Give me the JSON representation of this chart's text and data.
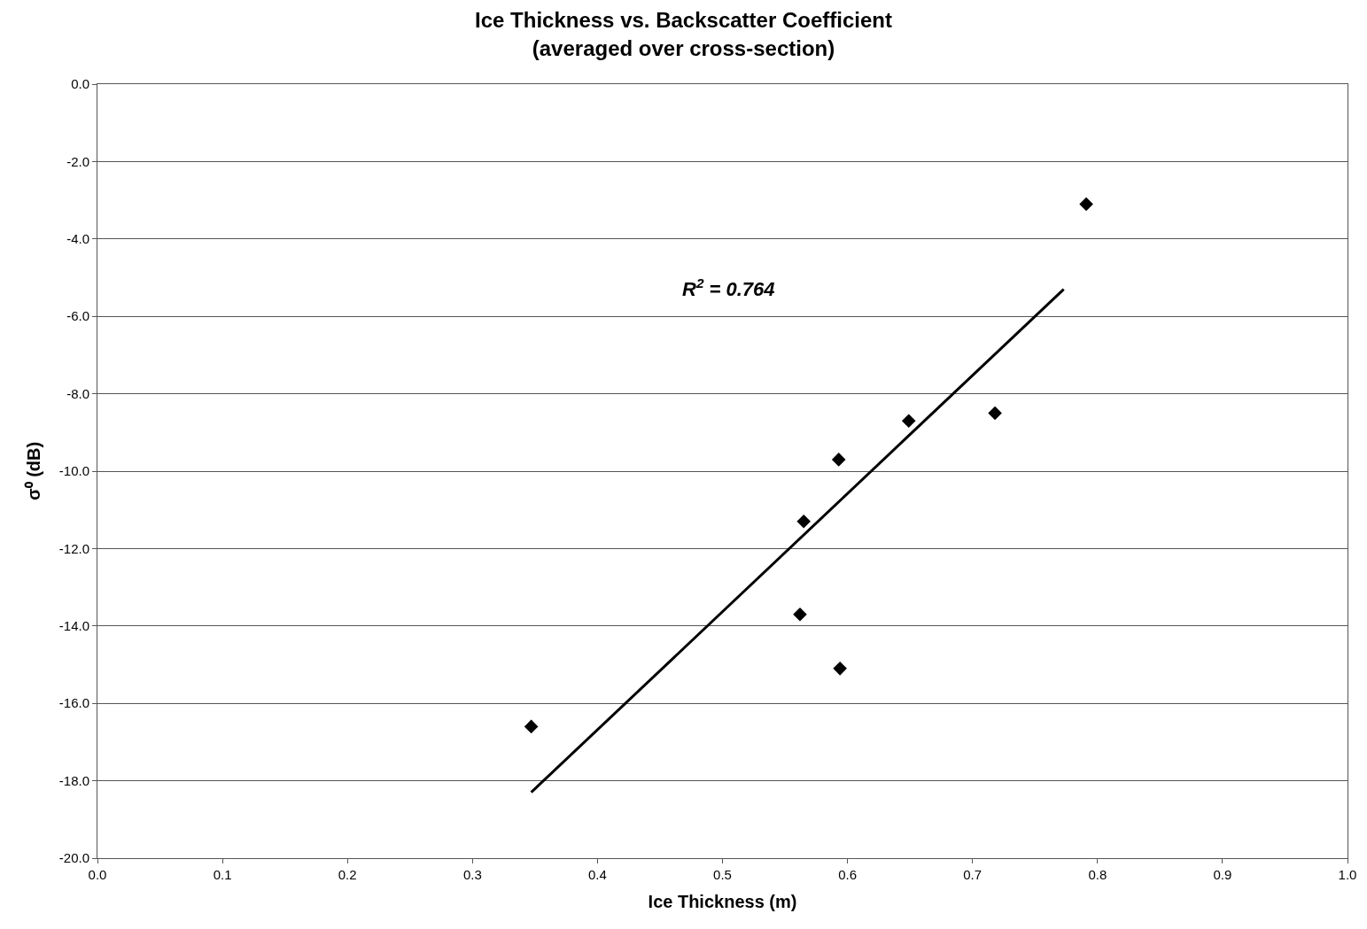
{
  "chart_data": {
    "type": "scatter",
    "title": "Ice Thickness vs. Backscatter Coefficient\n(averaged over cross-section)",
    "xlabel": "Ice Thickness (m)",
    "ylabel": "σ⁰ (dB)",
    "series": [
      {
        "color": "#000000",
        "marker": "diamond",
        "x": [
          0.347,
          0.565,
          0.562,
          0.593,
          0.594,
          0.649,
          0.718,
          0.791
        ],
        "values": [
          -16.6,
          -11.3,
          -13.7,
          -9.7,
          -15.1,
          -8.7,
          -8.5,
          -3.1
        ]
      },
      {
        "type": "line",
        "color": "#000000",
        "marker": "none",
        "line_style": "solid",
        "x": [
          0.347,
          0.773
        ],
        "values": [
          -18.3,
          -5.3
        ]
      }
    ],
    "xlim": [
      0.0,
      1.0
    ],
    "ylim": [
      -20.0,
      0.0
    ],
    "xticks": [
      {
        "value": 0,
        "label": "0.0"
      },
      0.1,
      0.2,
      0.3,
      0.4,
      0.5,
      0.6,
      0.7,
      0.8,
      0.9,
      {
        "value": 1,
        "label": "1.0"
      }
    ],
    "yticks": [
      {
        "value": -20,
        "label": "-20.0"
      },
      {
        "value": -18,
        "label": "-18.0"
      },
      {
        "value": -16,
        "label": "-16.0"
      },
      {
        "value": -14,
        "label": "-14.0"
      },
      {
        "value": -12,
        "label": "-12.0"
      },
      {
        "value": -10,
        "label": "-10.0"
      },
      {
        "value": -8,
        "label": "-8.0"
      },
      {
        "value": -6,
        "label": "-6.0"
      },
      {
        "value": -4,
        "label": "-4.0"
      },
      {
        "value": -2,
        "label": "-2.0"
      },
      {
        "value": 0,
        "label": "0.0"
      }
    ],
    "annotations": [
      "R$^{2}$ = 0.764"
    ],
    "grid": "y"
  }
}
